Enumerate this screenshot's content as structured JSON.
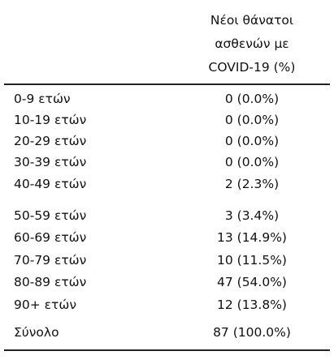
{
  "table": {
    "header": {
      "value_column": "Νέοι θάνατοι\nασθενών με\nCOVID-19 (%)"
    },
    "rows": [
      {
        "label": "0-9 ετών",
        "value": "0 (0.0%)"
      },
      {
        "label": "10-19 ετών",
        "value": "0 (0.0%)"
      },
      {
        "label": "20-29 ετών",
        "value": "0 (0.0%)"
      },
      {
        "label": "30-39 ετών",
        "value": "0 (0.0%)"
      },
      {
        "label": "40-49 ετών",
        "value": "2 (2.3%)"
      },
      {
        "label": "50-59 ετών",
        "value": "3 (3.4%)"
      },
      {
        "label": "60-69 ετών",
        "value": "13 (14.9%)"
      },
      {
        "label": "70-79 ετών",
        "value": "10 (11.5%)"
      },
      {
        "label": "80-89 ετών",
        "value": "47 (54.0%)"
      },
      {
        "label": "90+ ετών",
        "value": "12 (13.8%)"
      }
    ],
    "total": {
      "label": "Σύνολο",
      "value": "87 (100.0%)"
    }
  }
}
